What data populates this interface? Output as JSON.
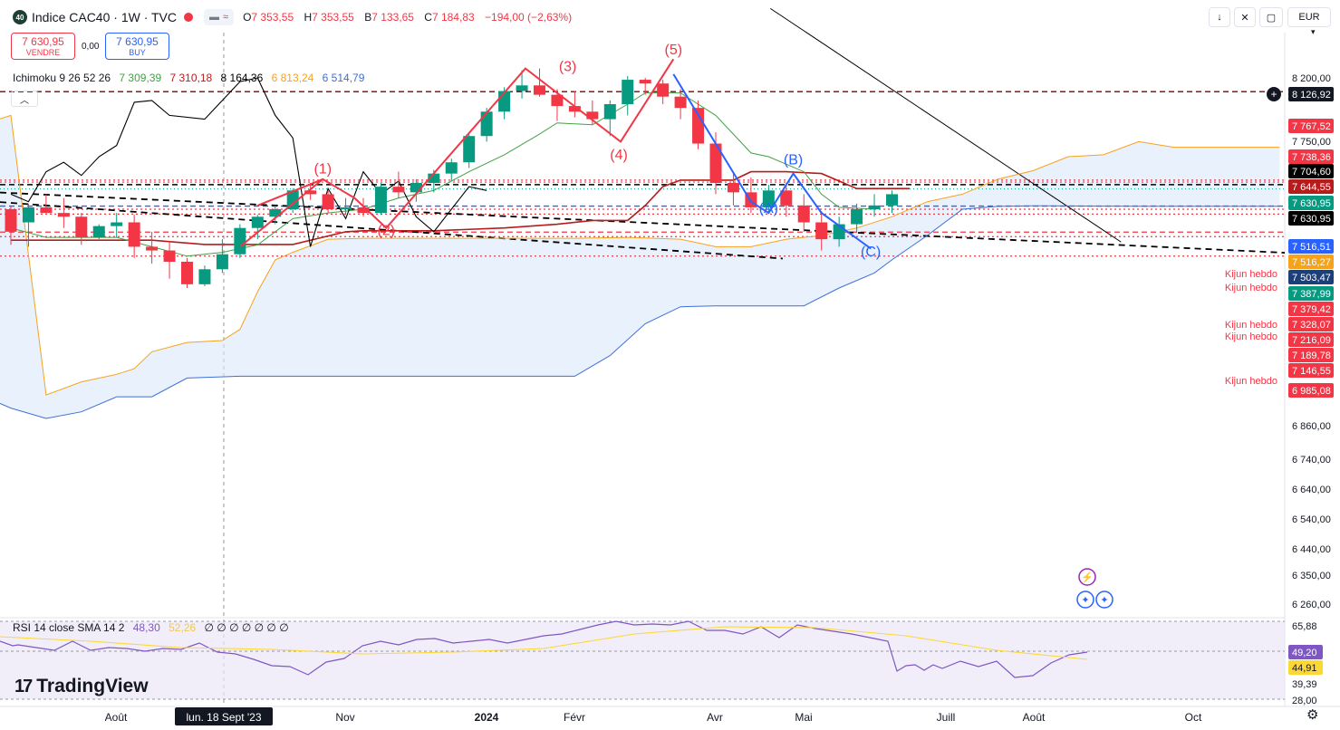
{
  "header": {
    "badge": "40",
    "title": "Indice CAC40 · 1W · TVC",
    "open_label": "O",
    "open": "7 353,55",
    "high_label": "H",
    "high": "7 353,55",
    "low_label": "B",
    "low": "7 133,65",
    "close_label": "C",
    "close": "7 184,83",
    "change": "−194,00 (−2,63%)"
  },
  "toolbar": {
    "currency": "EUR",
    "currency_arrow": "▾"
  },
  "trade": {
    "sell_price": "7 630,95",
    "sell_label": "VENDRE",
    "spread": "0,00",
    "buy_price": "7 630,95",
    "buy_label": "BUY"
  },
  "indicator": {
    "name": "Ichimoku 9 26 52 26",
    "v1": "7 309,39",
    "v2": "7 310,18",
    "v3": "8 164,36",
    "v4": "6 813,24",
    "v5": "6 514,79",
    "collapse_glyph": "︿"
  },
  "rsi": {
    "name": "RSI 14 close SMA 14 2",
    "v1": "48,30",
    "v2": "52,26",
    "empty": "∅ ∅ ∅ ∅ ∅ ∅ ∅"
  },
  "brand": "TradingView",
  "colors": {
    "up": "#089981",
    "down": "#f23645",
    "wave_up": "#f23645",
    "wave_down": "#2962ff",
    "kijun": "#b71c1c",
    "tenkan": "#43a047",
    "chikou": "#000000",
    "spanA": "#f7a21b",
    "spanB": "#3f6fd8",
    "rsi": "#7e57c2",
    "rsi_ma": "#fdd835"
  },
  "chart_data": {
    "type": "candlestick",
    "y_ticks": [
      "8 200,00",
      "7 750,00",
      "6 860,00",
      "6 740,00",
      "6 640,00",
      "6 540,00",
      "6 440,00",
      "6 350,00",
      "6 260,00"
    ],
    "price_labels": [
      {
        "text": "8 126,92",
        "price": 8126.92,
        "style": "dark"
      },
      {
        "text": "7 767,52",
        "price": 7767.52,
        "style": "red"
      },
      {
        "text": "7 738,36",
        "price": 7738.36,
        "style": "red"
      },
      {
        "text": "7 704,60",
        "price": 7704.6,
        "style": "black"
      },
      {
        "text": "7 644,55",
        "price": 7644.55,
        "style": "darkred"
      },
      {
        "text": "7 630,95",
        "price": 7630.95,
        "style": "green"
      },
      {
        "text": "7 630,95",
        "price": 7615,
        "style": "black"
      },
      {
        "text": "7 516,51",
        "price": 7516.51,
        "style": "blue"
      },
      {
        "text": "7 516,27",
        "price": 7500,
        "style": "orange"
      },
      {
        "text": "7 503,47",
        "price": 7482,
        "style": "navy"
      },
      {
        "text": "7 387,99",
        "price": 7447,
        "style": "green"
      },
      {
        "text": "7 379,42",
        "price": 7404,
        "style": "red"
      },
      {
        "text": "7 328,07",
        "price": 7363,
        "style": "red"
      },
      {
        "text": "7 216,09",
        "price": 7339,
        "style": "red"
      },
      {
        "text": "7 189,78",
        "price": 7314,
        "style": "red"
      },
      {
        "text": "7 146,55",
        "price": 7285,
        "style": "red"
      },
      {
        "text": "6 985,08",
        "price": 7250,
        "style": "red"
      }
    ],
    "kijun_labels": [
      {
        "text": "Kijun hebdo",
        "price": 7500
      },
      {
        "text": "Kijun hebdo",
        "price": 7474
      },
      {
        "text": "Kijun hebdo",
        "price": 7378
      },
      {
        "text": "Kijun hebdo",
        "price": 7354
      },
      {
        "text": "Kijun hebdo",
        "price": 7250
      }
    ],
    "rsi_ticks": [
      {
        "text": "65,88",
        "style": "plain"
      },
      {
        "text": "49,20",
        "style": "purple"
      },
      {
        "text": "44,91",
        "style": "yellow"
      },
      {
        "text": "39,39",
        "style": "plain"
      },
      {
        "text": "28,00",
        "style": "plain"
      }
    ],
    "x_labels": [
      {
        "text": "Août",
        "i": 1
      },
      {
        "text": "lun. 18 Sept '23",
        "i": 7,
        "highlight": true
      },
      {
        "text": "Nov",
        "i": 15
      },
      {
        "text": "2024",
        "i": 23,
        "bold": true
      },
      {
        "text": "Févr",
        "i": 28
      },
      {
        "text": "Avr",
        "i": 36
      },
      {
        "text": "Mai",
        "i": 40
      },
      {
        "text": "Juill",
        "i": 49
      },
      {
        "text": "Août",
        "i": 53
      },
      {
        "text": "Oct",
        "i": 61
      }
    ],
    "wave_labels": [
      {
        "text": "(1)",
        "i": 17.7,
        "price": 7690,
        "color": "red"
      },
      {
        "text": "(2)",
        "i": 21.3,
        "price": 7362,
        "color": "red"
      },
      {
        "text": "(3)",
        "i": 31.6,
        "price": 8236,
        "color": "red"
      },
      {
        "text": "(4)",
        "i": 34.5,
        "price": 7765,
        "color": "red"
      },
      {
        "text": "(5)",
        "i": 37.6,
        "price": 8326,
        "color": "red"
      },
      {
        "text": "(B)",
        "i": 44.4,
        "price": 7740,
        "color": "blue"
      },
      {
        "text": "(A)",
        "i": 43.0,
        "price": 7480,
        "color": "blue"
      },
      {
        "text": "(C)",
        "i": 48.8,
        "price": 7248,
        "color": "blue"
      }
    ],
    "candles": [
      [
        7500,
        7520,
        7310,
        7380
      ],
      [
        7430,
        7530,
        7300,
        7510
      ],
      [
        7510,
        7580,
        7480,
        7480
      ],
      [
        7480,
        7560,
        7400,
        7460
      ],
      [
        7460,
        7480,
        7310,
        7350
      ],
      [
        7350,
        7420,
        7340,
        7410
      ],
      [
        7410,
        7480,
        7350,
        7430
      ],
      [
        7430,
        7470,
        7240,
        7300
      ],
      [
        7300,
        7380,
        7210,
        7280
      ],
      [
        7280,
        7330,
        7130,
        7220
      ],
      [
        7220,
        7240,
        7080,
        7100
      ],
      [
        7100,
        7200,
        7090,
        7180
      ],
      [
        7180,
        7340,
        7160,
        7260
      ],
      [
        7260,
        7420,
        7240,
        7400
      ],
      [
        7400,
        7470,
        7340,
        7460
      ],
      [
        7460,
        7520,
        7420,
        7500
      ],
      [
        7500,
        7610,
        7480,
        7600
      ],
      [
        7600,
        7640,
        7550,
        7580
      ],
      [
        7580,
        7600,
        7480,
        7500
      ],
      [
        7500,
        7560,
        7470,
        7510
      ],
      [
        7510,
        7560,
        7460,
        7480
      ],
      [
        7480,
        7640,
        7470,
        7620
      ],
      [
        7620,
        7700,
        7560,
        7590
      ],
      [
        7590,
        7660,
        7540,
        7640
      ],
      [
        7640,
        7710,
        7590,
        7690
      ],
      [
        7690,
        7770,
        7650,
        7750
      ],
      [
        7750,
        7900,
        7720,
        7890
      ],
      [
        7890,
        8040,
        7860,
        8020
      ],
      [
        8020,
        8150,
        7980,
        8130
      ],
      [
        8130,
        8240,
        8090,
        8160
      ],
      [
        8160,
        8250,
        8100,
        8110
      ],
      [
        8110,
        8140,
        7970,
        8050
      ],
      [
        8050,
        8130,
        7990,
        8020
      ],
      [
        8020,
        8080,
        7950,
        7980
      ],
      [
        7980,
        8080,
        7890,
        8060
      ],
      [
        8060,
        8210,
        8000,
        8190
      ],
      [
        8190,
        8200,
        8110,
        8170
      ],
      [
        8170,
        8190,
        8060,
        8100
      ],
      [
        8100,
        8140,
        7980,
        8040
      ],
      [
        8040,
        8080,
        7820,
        7850
      ],
      [
        7850,
        7910,
        7580,
        7640
      ],
      [
        7640,
        7700,
        7520,
        7590
      ],
      [
        7590,
        7670,
        7480,
        7510
      ],
      [
        7510,
        7630,
        7480,
        7600
      ],
      [
        7600,
        7640,
        7460,
        7520
      ],
      [
        7520,
        7580,
        7380,
        7430
      ],
      [
        7430,
        7490,
        7280,
        7340
      ],
      [
        7340,
        7460,
        7300,
        7420
      ],
      [
        7420,
        7530,
        7380,
        7500
      ],
      [
        7500,
        7580,
        7460,
        7520
      ],
      [
        7520,
        7600,
        7480,
        7580
      ]
    ]
  }
}
